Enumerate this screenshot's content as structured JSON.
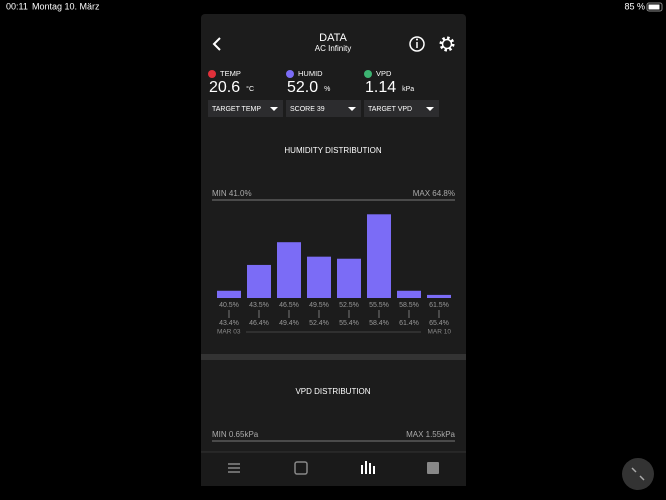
{
  "status_bar": {
    "time": "00:11",
    "date": "Montag 10. März",
    "battery": "85 %"
  },
  "header": {
    "title": "DATA",
    "subtitle": "AC Infinity"
  },
  "readings": [
    {
      "label": "TEMP",
      "value": "20.6",
      "unit": "°C",
      "color": "#e0303a"
    },
    {
      "label": "HUMID",
      "value": "52.0",
      "unit": "%",
      "color": "#7b6cf6"
    },
    {
      "label": "VPD",
      "value": "1.14",
      "unit": "kPa",
      "color": "#3cb371"
    }
  ],
  "dropdowns": [
    "TARGET TEMP",
    "SCORE 39",
    "TARGET VPD"
  ],
  "humidity": {
    "title": "HUMIDITY DISTRIBUTION",
    "min": "MIN 41.0%",
    "max": "MAX 64.8%",
    "start_date": "MAR 03",
    "end_date": "MAR 10",
    "chart_data": {
      "type": "bar",
      "categories": [
        "40.5%",
        "43.5%",
        "46.5%",
        "49.5%",
        "52.5%",
        "55.5%",
        "58.5%",
        "61.5%"
      ],
      "categories_end": [
        "43.4%",
        "46.4%",
        "49.4%",
        "52.4%",
        "55.4%",
        "58.4%",
        "61.4%",
        "65.4%"
      ],
      "values": [
        7,
        32,
        54,
        40,
        38,
        81,
        7,
        3
      ],
      "color": "#7b6cf6",
      "ylim": [
        0,
        90
      ]
    }
  },
  "vpd": {
    "title": "VPD DISTRIBUTION",
    "min": "MIN 0.65kPa",
    "max": "MAX 1.55kPa"
  }
}
